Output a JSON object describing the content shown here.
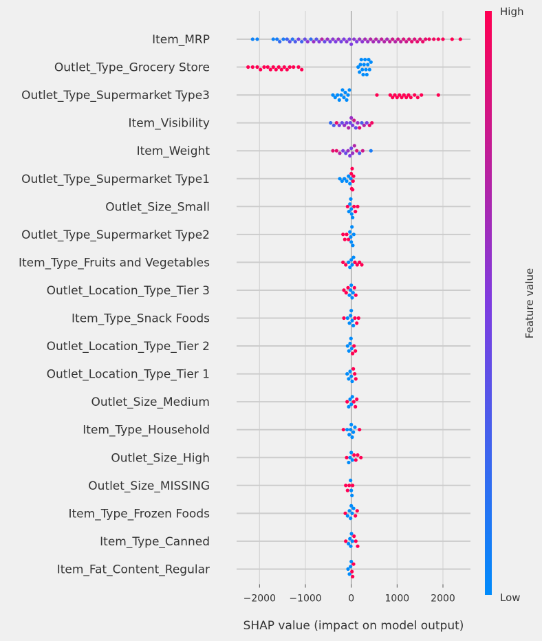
{
  "chart_data": {
    "type": "scatter",
    "subtype": "shap-beeswarm",
    "title": "",
    "xlabel": "SHAP value (impact on model output)",
    "ylabel": "",
    "xlim": [
      -2500,
      2600
    ],
    "xticks": [
      -2000,
      -1000,
      0,
      1000,
      2000
    ],
    "xtick_labels": [
      "−2000",
      "−1000",
      "0",
      "1000",
      "2000"
    ],
    "grid": true,
    "colorbar": {
      "label": "Feature value",
      "high_label": "High",
      "low_label": "Low",
      "low_color": "#008bfb",
      "high_color": "#ff0052"
    },
    "features": [
      {
        "name": "Item_MRP",
        "points": [
          [
            -2150,
            0.05
          ],
          [
            -2050,
            0.05
          ],
          [
            -1700,
            0.05
          ],
          [
            -1620,
            0.1
          ],
          [
            -1560,
            0.2
          ],
          [
            -1480,
            0.1
          ],
          [
            -1400,
            0.25
          ],
          [
            -1340,
            0.35
          ],
          [
            -1280,
            0.15
          ],
          [
            -1220,
            0.3
          ],
          [
            -1150,
            0.45
          ],
          [
            -1080,
            0.25
          ],
          [
            -1010,
            0.4
          ],
          [
            -950,
            0.55
          ],
          [
            -880,
            0.2
          ],
          [
            -820,
            0.6
          ],
          [
            -760,
            0.35
          ],
          [
            -700,
            0.5
          ],
          [
            -640,
            0.7
          ],
          [
            -580,
            0.4
          ],
          [
            -520,
            0.6
          ],
          [
            -460,
            0.45
          ],
          [
            -400,
            0.55
          ],
          [
            -340,
            0.5
          ],
          [
            -280,
            0.6
          ],
          [
            -220,
            0.45
          ],
          [
            -160,
            0.5
          ],
          [
            -100,
            0.55
          ],
          [
            -40,
            0.5
          ],
          [
            0,
            0.5
          ],
          [
            60,
            0.55
          ],
          [
            120,
            0.5
          ],
          [
            180,
            0.6
          ],
          [
            240,
            0.55
          ],
          [
            300,
            0.65
          ],
          [
            360,
            0.6
          ],
          [
            420,
            0.7
          ],
          [
            480,
            0.65
          ],
          [
            540,
            0.7
          ],
          [
            600,
            0.6
          ],
          [
            660,
            0.75
          ],
          [
            720,
            0.7
          ],
          [
            780,
            0.65
          ],
          [
            840,
            0.75
          ],
          [
            900,
            0.8
          ],
          [
            960,
            0.7
          ],
          [
            1020,
            0.8
          ],
          [
            1080,
            0.75
          ],
          [
            1140,
            0.85
          ],
          [
            1200,
            0.8
          ],
          [
            1260,
            0.85
          ],
          [
            1320,
            0.9
          ],
          [
            1380,
            0.85
          ],
          [
            1440,
            0.9
          ],
          [
            1500,
            0.88
          ],
          [
            1560,
            0.92
          ],
          [
            1620,
            0.9
          ],
          [
            1700,
            0.95
          ],
          [
            1800,
            0.95
          ],
          [
            1900,
            0.97
          ],
          [
            2000,
            0.98
          ],
          [
            2200,
            1.0
          ],
          [
            2380,
            1.0
          ]
        ]
      },
      {
        "name": "Outlet_Type_Grocery Store",
        "points": [
          [
            -2250,
            1.0
          ],
          [
            -2150,
            1.0
          ],
          [
            -2050,
            1.0
          ],
          [
            -1980,
            1.0
          ],
          [
            -1900,
            1.0
          ],
          [
            -1820,
            1.0
          ],
          [
            -1760,
            1.0
          ],
          [
            -1700,
            1.0
          ],
          [
            -1640,
            1.0
          ],
          [
            -1580,
            1.0
          ],
          [
            -1520,
            1.0
          ],
          [
            -1460,
            1.0
          ],
          [
            -1400,
            1.0
          ],
          [
            -1340,
            1.0
          ],
          [
            -1260,
            1.0
          ],
          [
            -1150,
            1.0
          ],
          [
            -1080,
            1.0
          ],
          [
            150,
            0.0
          ],
          [
            180,
            0.0
          ],
          [
            200,
            0.0
          ],
          [
            220,
            0.0
          ],
          [
            240,
            0.0
          ],
          [
            260,
            0.0
          ],
          [
            280,
            0.0
          ],
          [
            300,
            0.0
          ],
          [
            320,
            0.0
          ],
          [
            340,
            0.0
          ],
          [
            360,
            0.0
          ],
          [
            380,
            0.0
          ],
          [
            400,
            0.0
          ],
          [
            430,
            0.0
          ]
        ]
      },
      {
        "name": "Outlet_Type_Supermarket Type3",
        "points": [
          [
            -400,
            0.0
          ],
          [
            -350,
            0.0
          ],
          [
            -300,
            0.0
          ],
          [
            -260,
            0.0
          ],
          [
            -220,
            0.0
          ],
          [
            -190,
            0.0
          ],
          [
            -160,
            0.0
          ],
          [
            -130,
            0.0
          ],
          [
            -100,
            0.0
          ],
          [
            -70,
            0.0
          ],
          [
            -40,
            0.0
          ],
          [
            560,
            1.0
          ],
          [
            850,
            1.0
          ],
          [
            900,
            1.0
          ],
          [
            950,
            1.0
          ],
          [
            1000,
            1.0
          ],
          [
            1050,
            1.0
          ],
          [
            1100,
            1.0
          ],
          [
            1150,
            1.0
          ],
          [
            1200,
            1.0
          ],
          [
            1250,
            1.0
          ],
          [
            1300,
            1.0
          ],
          [
            1380,
            1.0
          ],
          [
            1450,
            1.0
          ],
          [
            1530,
            1.0
          ],
          [
            1900,
            1.0
          ]
        ]
      },
      {
        "name": "Item_Visibility",
        "points": [
          [
            -450,
            0.2
          ],
          [
            -380,
            0.3
          ],
          [
            -320,
            0.9
          ],
          [
            -260,
            0.5
          ],
          [
            -200,
            0.4
          ],
          [
            -150,
            0.6
          ],
          [
            -100,
            0.5
          ],
          [
            -60,
            0.7
          ],
          [
            -20,
            0.4
          ],
          [
            0,
            0.6
          ],
          [
            30,
            0.5
          ],
          [
            60,
            0.8
          ],
          [
            100,
            0.4
          ],
          [
            140,
            0.6
          ],
          [
            180,
            0.9
          ],
          [
            230,
            0.3
          ],
          [
            280,
            0.7
          ],
          [
            340,
            0.5
          ],
          [
            400,
            0.9
          ],
          [
            450,
            0.95
          ]
        ]
      },
      {
        "name": "Item_Weight",
        "points": [
          [
            -400,
            0.9
          ],
          [
            -320,
            0.9
          ],
          [
            -250,
            0.7
          ],
          [
            -180,
            0.5
          ],
          [
            -120,
            0.4
          ],
          [
            -70,
            0.6
          ],
          [
            -30,
            0.5
          ],
          [
            0,
            0.45
          ],
          [
            30,
            0.6
          ],
          [
            70,
            0.7
          ],
          [
            120,
            0.85
          ],
          [
            180,
            0.3
          ],
          [
            250,
            0.8
          ],
          [
            430,
            0.1
          ]
        ]
      },
      {
        "name": "Outlet_Type_Supermarket Type1",
        "points": [
          [
            -250,
            0.0
          ],
          [
            -200,
            0.0
          ],
          [
            -150,
            0.0
          ],
          [
            -100,
            0.0
          ],
          [
            -60,
            0.0
          ],
          [
            -30,
            0.0
          ],
          [
            -10,
            0.0
          ],
          [
            0,
            1.0
          ],
          [
            10,
            1.0
          ],
          [
            20,
            1.0
          ],
          [
            30,
            1.0
          ],
          [
            40,
            1.0
          ],
          [
            50,
            1.0
          ]
        ]
      },
      {
        "name": "Outlet_Size_Small",
        "points": [
          [
            -80,
            1.0
          ],
          [
            -50,
            0.0
          ],
          [
            -30,
            0.0
          ],
          [
            -10,
            0.0
          ],
          [
            0,
            0.0
          ],
          [
            10,
            0.0
          ],
          [
            30,
            0.0
          ],
          [
            60,
            1.0
          ],
          [
            90,
            1.0
          ],
          [
            140,
            1.0
          ]
        ]
      },
      {
        "name": "Outlet_Type_Supermarket Type2",
        "points": [
          [
            -180,
            1.0
          ],
          [
            -140,
            1.0
          ],
          [
            -100,
            1.0
          ],
          [
            -60,
            1.0
          ],
          [
            -30,
            0.0
          ],
          [
            -10,
            0.0
          ],
          [
            0,
            0.0
          ],
          [
            15,
            0.0
          ],
          [
            35,
            0.0
          ],
          [
            55,
            0.0
          ]
        ]
      },
      {
        "name": "Item_Type_Fruits and Vegetables",
        "points": [
          [
            -180,
            1.0
          ],
          [
            -120,
            1.0
          ],
          [
            -60,
            0.0
          ],
          [
            -30,
            0.0
          ],
          [
            0,
            0.0
          ],
          [
            20,
            0.0
          ],
          [
            50,
            0.0
          ],
          [
            80,
            1.0
          ],
          [
            130,
            1.0
          ],
          [
            180,
            1.0
          ],
          [
            230,
            1.0
          ]
        ]
      },
      {
        "name": "Outlet_Location_Type_Tier 3",
        "points": [
          [
            -160,
            1.0
          ],
          [
            -110,
            1.0
          ],
          [
            -70,
            1.0
          ],
          [
            -40,
            0.0
          ],
          [
            -15,
            0.0
          ],
          [
            0,
            0.0
          ],
          [
            20,
            0.0
          ],
          [
            40,
            0.0
          ],
          [
            70,
            1.0
          ],
          [
            100,
            1.0
          ]
        ]
      },
      {
        "name": "Item_Type_Snack Foods",
        "points": [
          [
            -160,
            1.0
          ],
          [
            -80,
            0.0
          ],
          [
            -40,
            0.0
          ],
          [
            -15,
            0.0
          ],
          [
            0,
            0.0
          ],
          [
            20,
            0.0
          ],
          [
            45,
            0.0
          ],
          [
            80,
            1.0
          ],
          [
            120,
            1.0
          ],
          [
            160,
            1.0
          ]
        ]
      },
      {
        "name": "Outlet_Location_Type_Tier 2",
        "points": [
          [
            -80,
            0.0
          ],
          [
            -50,
            0.0
          ],
          [
            -25,
            0.0
          ],
          [
            -5,
            0.0
          ],
          [
            10,
            0.0
          ],
          [
            30,
            1.0
          ],
          [
            60,
            1.0
          ],
          [
            90,
            1.0
          ]
        ]
      },
      {
        "name": "Outlet_Location_Type_Tier 1",
        "points": [
          [
            -90,
            0.0
          ],
          [
            -55,
            0.0
          ],
          [
            -25,
            0.0
          ],
          [
            0,
            0.0
          ],
          [
            20,
            0.0
          ],
          [
            45,
            1.0
          ],
          [
            75,
            1.0
          ],
          [
            100,
            1.0
          ]
        ]
      },
      {
        "name": "Outlet_Size_Medium",
        "points": [
          [
            -90,
            1.0
          ],
          [
            -55,
            0.0
          ],
          [
            -25,
            0.0
          ],
          [
            0,
            0.0
          ],
          [
            25,
            0.0
          ],
          [
            55,
            1.0
          ],
          [
            90,
            1.0
          ],
          [
            120,
            1.0
          ]
        ]
      },
      {
        "name": "Item_Type_Household",
        "points": [
          [
            -170,
            1.0
          ],
          [
            -90,
            0.0
          ],
          [
            -45,
            0.0
          ],
          [
            -15,
            0.0
          ],
          [
            0,
            0.0
          ],
          [
            20,
            0.0
          ],
          [
            45,
            0.0
          ],
          [
            80,
            0.0
          ],
          [
            180,
            1.0
          ]
        ]
      },
      {
        "name": "Outlet_Size_High",
        "points": [
          [
            -100,
            1.0
          ],
          [
            -55,
            0.0
          ],
          [
            -25,
            0.0
          ],
          [
            0,
            0.0
          ],
          [
            25,
            0.0
          ],
          [
            60,
            1.0
          ],
          [
            100,
            1.0
          ],
          [
            140,
            1.0
          ],
          [
            210,
            1.0
          ]
        ]
      },
      {
        "name": "Outlet_Size_MISSING",
        "points": [
          [
            -120,
            1.0
          ],
          [
            -80,
            1.0
          ],
          [
            -45,
            1.0
          ],
          [
            -15,
            0.0
          ],
          [
            0,
            0.0
          ],
          [
            15,
            0.0
          ],
          [
            30,
            1.0
          ]
        ]
      },
      {
        "name": "Item_Type_Frozen Foods",
        "points": [
          [
            -130,
            1.0
          ],
          [
            -80,
            0.0
          ],
          [
            -40,
            0.0
          ],
          [
            -15,
            0.0
          ],
          [
            0,
            0.0
          ],
          [
            20,
            0.0
          ],
          [
            50,
            0.0
          ],
          [
            90,
            1.0
          ],
          [
            130,
            1.0
          ]
        ]
      },
      {
        "name": "Item_Type_Canned",
        "points": [
          [
            -120,
            1.0
          ],
          [
            -60,
            0.0
          ],
          [
            -30,
            0.0
          ],
          [
            -10,
            0.0
          ],
          [
            5,
            0.0
          ],
          [
            25,
            0.0
          ],
          [
            60,
            1.0
          ],
          [
            100,
            1.0
          ],
          [
            140,
            1.0
          ]
        ]
      },
      {
        "name": "Item_Fat_Content_Regular",
        "points": [
          [
            -70,
            0.0
          ],
          [
            -40,
            0.0
          ],
          [
            -15,
            0.0
          ],
          [
            0,
            0.0
          ],
          [
            15,
            1.0
          ],
          [
            30,
            1.0
          ],
          [
            50,
            1.0
          ]
        ]
      }
    ]
  }
}
